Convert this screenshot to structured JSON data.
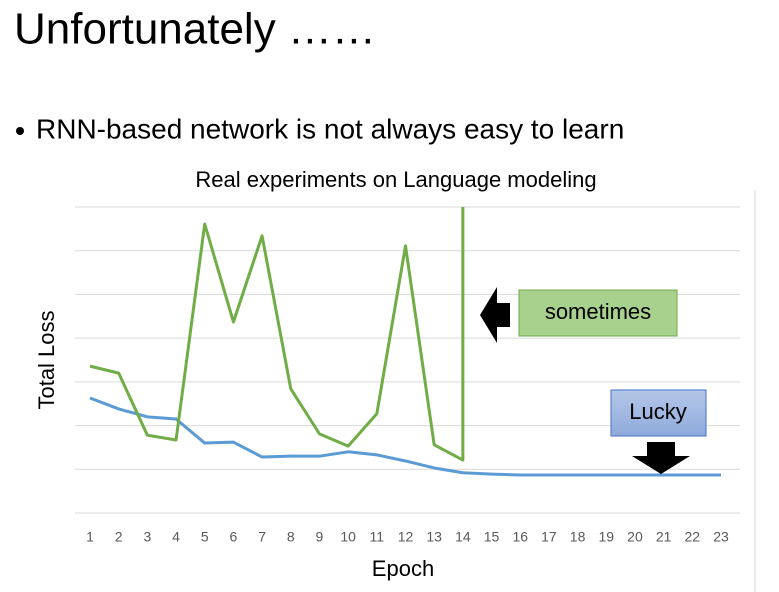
{
  "slide": {
    "title": "Unfortunately ……",
    "bullet": "RNN-based network is not always easy to learn"
  },
  "chart_data": {
    "type": "line",
    "title": "Real experiments on Language modeling",
    "x_label": "Epoch",
    "y_label": "Total Loss",
    "x": [
      1,
      2,
      3,
      4,
      5,
      6,
      7,
      8,
      9,
      10,
      11,
      12,
      13,
      14,
      15,
      16,
      17,
      18,
      19,
      20,
      21,
      22,
      23
    ],
    "xlim": [
      1,
      23
    ],
    "ylim": [
      0,
      7
    ],
    "yticks": [
      0,
      1,
      2,
      3,
      4,
      5,
      6,
      7
    ],
    "ytick_labels": false,
    "grid": true,
    "series": [
      {
        "color": "#5b9bd5",
        "values": [
          2.63,
          2.38,
          2.2,
          2.15,
          1.6,
          1.62,
          1.28,
          1.3,
          1.3,
          1.4,
          1.33,
          1.19,
          1.03,
          0.92,
          0.89,
          0.87,
          0.87,
          0.87,
          0.87,
          0.87,
          0.87,
          0.87,
          0.87
        ]
      },
      {
        "color": "#70ad47",
        "x": [
          1,
          2,
          3,
          4,
          5,
          6,
          7,
          8,
          9,
          10,
          11,
          12,
          13,
          14,
          14
        ],
        "values": [
          3.36,
          3.2,
          1.78,
          1.67,
          6.61,
          4.37,
          6.34,
          2.84,
          1.81,
          1.53,
          2.27,
          6.11,
          1.56,
          1.21,
          7
        ]
      }
    ],
    "annotations": [
      {
        "text": "sometimes"
      },
      {
        "text": "Lucky"
      }
    ]
  }
}
